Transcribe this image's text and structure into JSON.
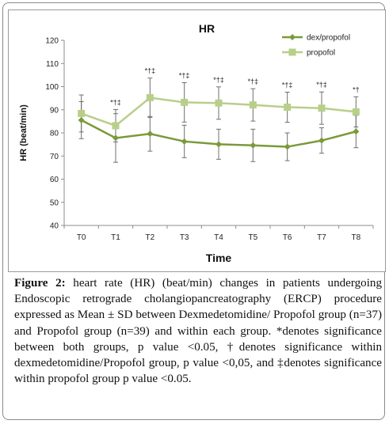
{
  "chart_data": {
    "type": "line",
    "title": "HR",
    "xlabel": "Time",
    "ylabel": "HR (beat/min)",
    "categories": [
      "T0",
      "T1",
      "T2",
      "T3",
      "T4",
      "T5",
      "T6",
      "T7",
      "T8"
    ],
    "ylim": [
      40,
      120
    ],
    "yticks": [
      40,
      50,
      60,
      70,
      80,
      90,
      100,
      110,
      120
    ],
    "grid": false,
    "legend_position": "top-right",
    "series": [
      {
        "name": "dex/propofol",
        "color": "#7a9a3a",
        "marker": "diamond",
        "values": [
          85.5,
          77.8,
          79.6,
          76.3,
          75.1,
          74.6,
          74.0,
          76.7,
          80.6
        ],
        "sd": [
          8,
          10.5,
          7.5,
          7,
          6.5,
          7,
          6,
          5.5,
          7
        ]
      },
      {
        "name": "propofol",
        "color": "#b8cf8a",
        "marker": "square",
        "values": [
          88.4,
          83.1,
          95.2,
          93.2,
          92.9,
          92.1,
          91.1,
          90.7,
          89.1
        ],
        "sd": [
          8,
          7,
          8.5,
          8.5,
          7,
          7,
          6.5,
          7,
          6.5
        ]
      }
    ],
    "annotations": [
      "",
      "*†‡",
      "*†‡",
      "*†‡",
      "*†‡",
      "*†‡",
      "*†‡",
      "*†‡",
      "*†"
    ]
  },
  "caption": {
    "label": "Figure 2:",
    "text": " heart rate (HR) (beat/min) changes in patients undergoing Endoscopic retrograde cholangiopancreatography (ERCP) procedure expressed as Mean ± SD between Dexmedetomidine/ Propofol group (n=37) and Propofol group (n=39) and within each group. *denotes significance between both groups, p value <0.05, †denotes significance within dexmedetomidine/Propofol group, p value <0,05, and ‡denotes significance within propofol group p value <0.05."
  }
}
